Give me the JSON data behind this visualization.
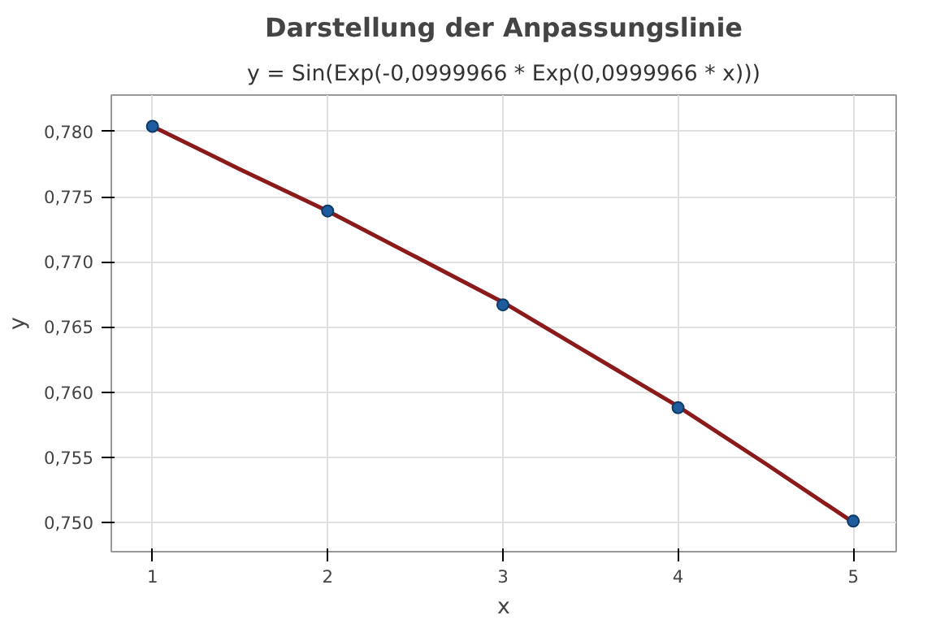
{
  "chart_data": {
    "type": "scatter",
    "title": "Darstellung der Anpassungslinie",
    "subtitle": "y = Sin(Exp(-0,0999966 * Exp(0,0999966 * x)))",
    "xlabel": "x",
    "ylabel": "y",
    "xlim": [
      0.765,
      5.245
    ],
    "ylim": [
      0.74775,
      0.7828
    ],
    "xticks": [
      1,
      2,
      3,
      4,
      5
    ],
    "yticks": [
      {
        "value": 0.75,
        "label": "0,750"
      },
      {
        "value": 0.755,
        "label": "0,755"
      },
      {
        "value": 0.76,
        "label": "0,760"
      },
      {
        "value": 0.765,
        "label": "0,765"
      },
      {
        "value": 0.77,
        "label": "0,770"
      },
      {
        "value": 0.775,
        "label": "0,775"
      },
      {
        "value": 0.78,
        "label": "0,780"
      }
    ],
    "grid": true,
    "series": [
      {
        "type": "line",
        "color": "#8b1a1a",
        "marker": "none",
        "line_style": "solid",
        "x": [
          1,
          1.5,
          2,
          2.5,
          3,
          3.5,
          4,
          4.5,
          5
        ],
        "values": [
          0.7804,
          0.7771,
          0.7739,
          0.7704,
          0.7669,
          0.7629,
          0.7589,
          0.7545,
          0.75
        ]
      },
      {
        "color": "#1f5c9e",
        "marker": "circle",
        "x": [
          1,
          2,
          3,
          4,
          5
        ],
        "values": [
          0.7804,
          0.7739,
          0.7667,
          0.7588,
          0.7501
        ]
      }
    ]
  }
}
